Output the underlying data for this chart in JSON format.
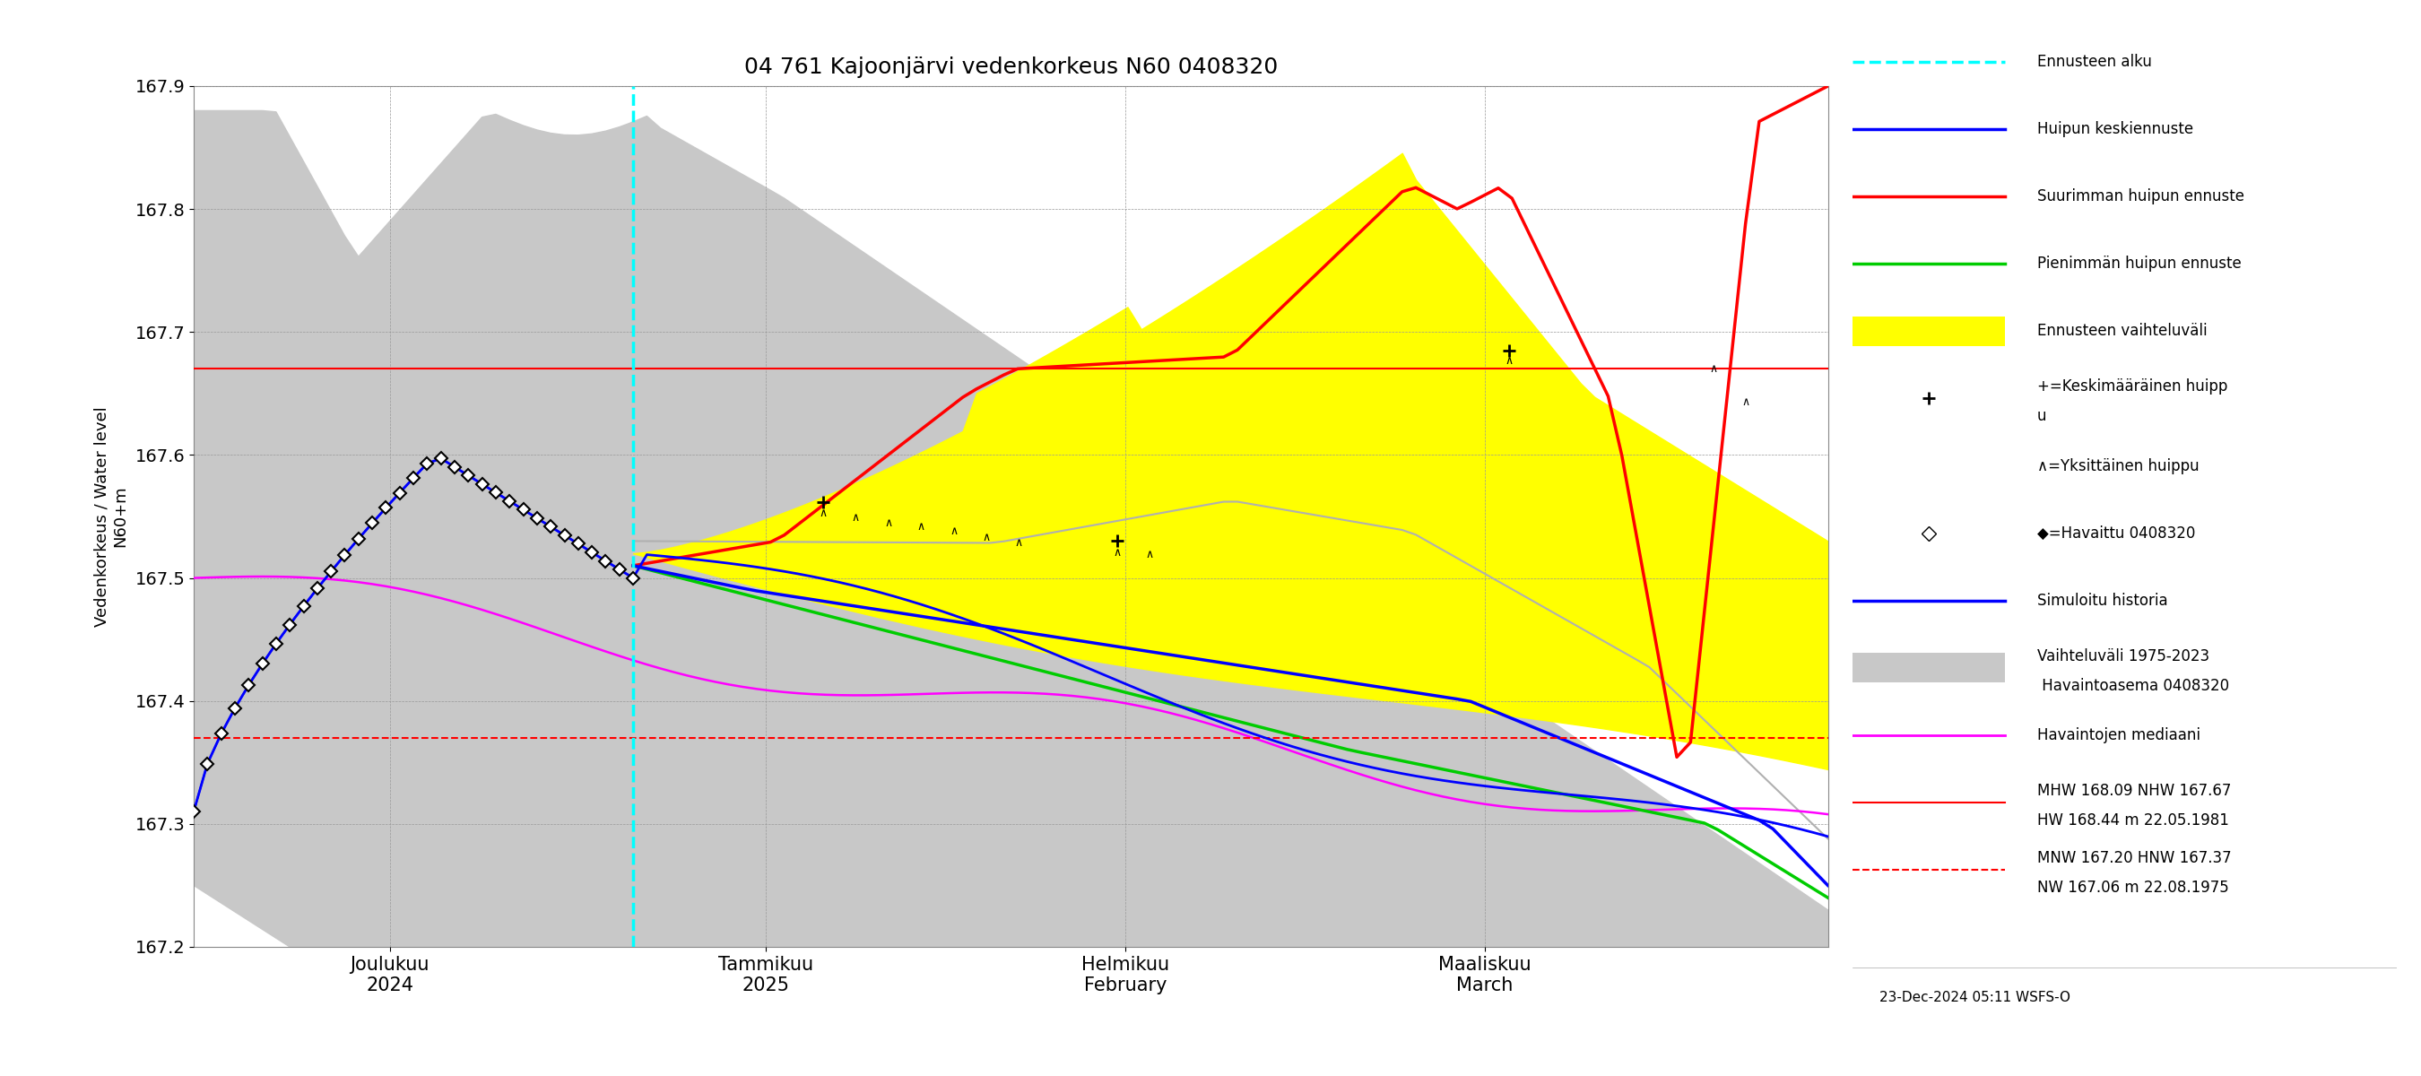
{
  "title": "04 761 Kajoonjärvi vedenkorkeus N60 0408320",
  "ylabel": "Vedenkorkeus / Water level",
  "ylabel2": "N60+m",
  "ylim": [
    167.2,
    167.9
  ],
  "bg_color": "#ffffff",
  "hline_red_solid": 167.67,
  "hline_red_dashed": 167.37,
  "timestamp": "23-Dec-2024 05:11 WSFS-O",
  "xtick_labels": [
    "Joulukuu\n2024",
    "Tammikuu\n2025",
    "Helmikuu\nFebruary",
    "Maaliskuu\nMarch"
  ],
  "xtick_positions": [
    0.12,
    0.35,
    0.57,
    0.79
  ],
  "n_points": 120,
  "forecast_idx": 32
}
